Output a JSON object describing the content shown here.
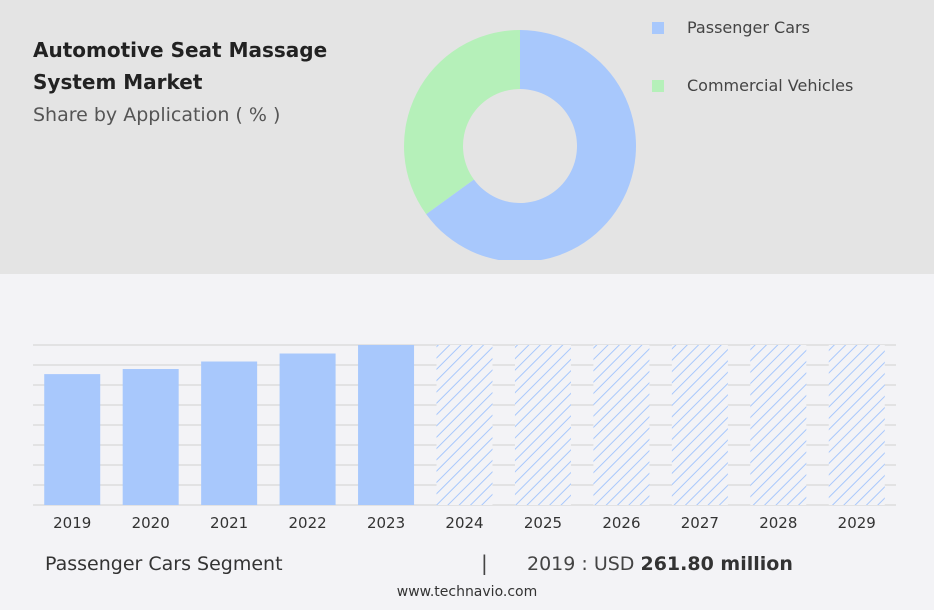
{
  "header": {
    "title": "Automotive Seat Massage System Market",
    "subtitle": "Share by Application ( % )"
  },
  "colors": {
    "passenger": "#a8c8fc",
    "commercial": "#b5f0b9",
    "hatch": "#a8c8fc",
    "grid": "#d0d0d0"
  },
  "chart_data": [
    {
      "type": "pie",
      "variant": "donut",
      "slices": [
        {
          "label": "Passenger Cars",
          "value": 65
        },
        {
          "label": "Commercial Vehicles",
          "value": 35
        }
      ],
      "legend": "top-right"
    },
    {
      "type": "bar",
      "categories": [
        "2019",
        "2020",
        "2021",
        "2022",
        "2023",
        "2024",
        "2025",
        "2026",
        "2027",
        "2028",
        "2029"
      ],
      "values": [
        261.8,
        272,
        287,
        303,
        320,
        320,
        320,
        320,
        320,
        320,
        320
      ],
      "forecast_from": "2024",
      "ylim": [
        0,
        320
      ],
      "grid": true
    }
  ],
  "footer": {
    "segment_label": "Passenger Cars Segment",
    "divider": "|",
    "value_prefix": "2019 : USD",
    "value_bold": "261.80 million",
    "url": "www.technavio.com"
  }
}
